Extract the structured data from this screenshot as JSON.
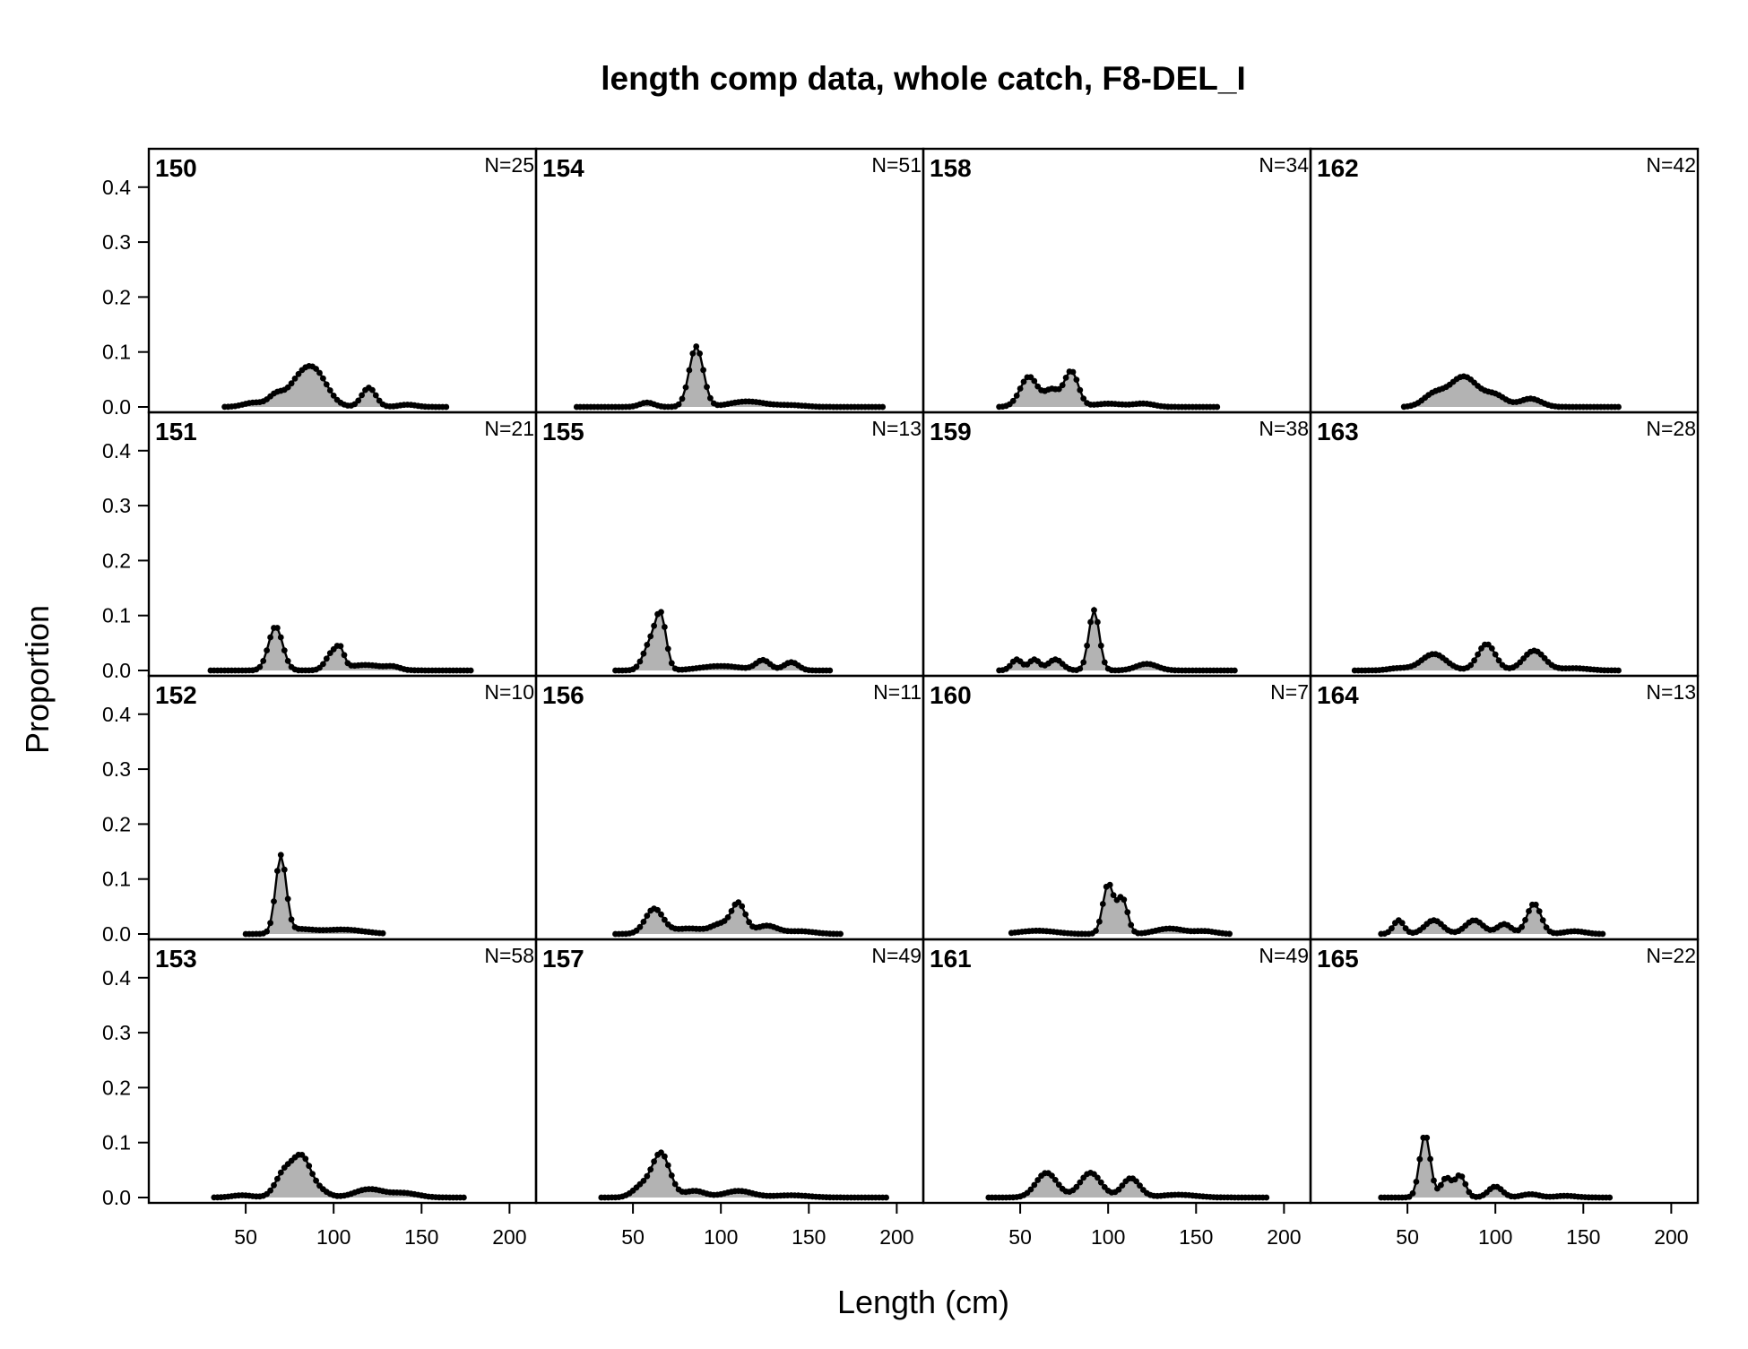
{
  "chart_data": {
    "type": "area",
    "title": "length comp data, whole catch, F8-DEL_I",
    "xlabel": "Length (cm)",
    "ylabel": "Proportion",
    "xlim": [
      0,
      210
    ],
    "ylim": [
      0,
      0.46
    ],
    "x_ticks": [
      50,
      100,
      150,
      200
    ],
    "y_ticks": [
      0.0,
      0.1,
      0.2,
      0.3,
      0.4
    ],
    "y_tick_labels": [
      "0.0",
      "0.1",
      "0.2",
      "0.3",
      "0.4"
    ],
    "grid": false,
    "layout": {
      "rows": 4,
      "cols": 4,
      "fill_order": "column"
    },
    "colors": {
      "fill": "#b3b3b3",
      "line": "#000000",
      "frame": "#000000"
    },
    "panels": [
      {
        "label": "150",
        "n": "N=25",
        "x_start": 38,
        "x_end": 164,
        "peaks": [
          [
            55,
            0.008,
            6
          ],
          [
            67,
            0.018,
            4
          ],
          [
            80,
            0.04,
            7
          ],
          [
            90,
            0.055,
            7
          ],
          [
            120,
            0.035,
            4
          ],
          [
            142,
            0.004,
            5
          ]
        ]
      },
      {
        "label": "151",
        "n": "N=21",
        "x_start": 30,
        "x_end": 178,
        "peaks": [
          [
            67,
            0.08,
            4
          ],
          [
            100,
            0.034,
            4
          ],
          [
            104,
            0.02,
            2
          ],
          [
            118,
            0.01,
            10
          ],
          [
            134,
            0.005,
            4
          ]
        ]
      },
      {
        "label": "152",
        "n": "N=10",
        "x_start": 50,
        "x_end": 128,
        "peaks": [
          [
            70,
            0.14,
            3
          ],
          [
            80,
            0.008,
            8
          ],
          [
            105,
            0.008,
            12
          ]
        ]
      },
      {
        "label": "153",
        "n": "N=58",
        "x_start": 32,
        "x_end": 175,
        "peaks": [
          [
            48,
            0.004,
            6
          ],
          [
            72,
            0.045,
            5
          ],
          [
            82,
            0.07,
            5
          ],
          [
            92,
            0.012,
            5
          ],
          [
            120,
            0.015,
            8
          ],
          [
            140,
            0.008,
            8
          ]
        ]
      },
      {
        "label": "154",
        "n": "N=51",
        "x_start": 18,
        "x_end": 192,
        "peaks": [
          [
            58,
            0.008,
            4
          ],
          [
            86,
            0.11,
            4
          ],
          [
            115,
            0.01,
            10
          ],
          [
            140,
            0.003,
            8
          ]
        ]
      },
      {
        "label": "155",
        "n": "N=13",
        "x_start": 40,
        "x_end": 162,
        "peaks": [
          [
            60,
            0.05,
            4
          ],
          [
            66,
            0.09,
            3
          ],
          [
            100,
            0.008,
            12
          ],
          [
            124,
            0.018,
            4
          ],
          [
            140,
            0.015,
            4
          ]
        ]
      },
      {
        "label": "156",
        "n": "N=11",
        "x_start": 40,
        "x_end": 168,
        "peaks": [
          [
            62,
            0.045,
            5
          ],
          [
            82,
            0.01,
            10
          ],
          [
            100,
            0.016,
            5
          ],
          [
            110,
            0.055,
            4
          ],
          [
            126,
            0.015,
            6
          ],
          [
            145,
            0.005,
            8
          ]
        ]
      },
      {
        "label": "157",
        "n": "N=49",
        "x_start": 32,
        "x_end": 195,
        "peaks": [
          [
            55,
            0.02,
            5
          ],
          [
            66,
            0.08,
            5
          ],
          [
            85,
            0.012,
            6
          ],
          [
            110,
            0.012,
            8
          ],
          [
            140,
            0.004,
            10
          ]
        ]
      },
      {
        "label": "158",
        "n": "N=34",
        "x_start": 38,
        "x_end": 162,
        "peaks": [
          [
            55,
            0.055,
            5
          ],
          [
            68,
            0.03,
            4
          ],
          [
            79,
            0.065,
            4
          ],
          [
            100,
            0.006,
            8
          ],
          [
            120,
            0.006,
            6
          ]
        ]
      },
      {
        "label": "159",
        "n": "N=38",
        "x_start": 38,
        "x_end": 172,
        "peaks": [
          [
            48,
            0.02,
            3
          ],
          [
            58,
            0.02,
            3
          ],
          [
            70,
            0.02,
            4
          ],
          [
            92,
            0.11,
            3
          ],
          [
            122,
            0.012,
            6
          ]
        ]
      },
      {
        "label": "160",
        "n": "N=7",
        "x_start": 45,
        "x_end": 170,
        "peaks": [
          [
            60,
            0.006,
            10
          ],
          [
            100,
            0.09,
            3
          ],
          [
            108,
            0.065,
            3
          ],
          [
            135,
            0.01,
            8
          ],
          [
            155,
            0.005,
            6
          ]
        ]
      },
      {
        "label": "161",
        "n": "N=49",
        "x_start": 32,
        "x_end": 190,
        "peaks": [
          [
            65,
            0.045,
            6
          ],
          [
            90,
            0.045,
            6
          ],
          [
            113,
            0.035,
            5
          ],
          [
            140,
            0.005,
            10
          ]
        ]
      },
      {
        "label": "162",
        "n": "N=42",
        "x_start": 48,
        "x_end": 170,
        "peaks": [
          [
            65,
            0.022,
            6
          ],
          [
            82,
            0.055,
            8
          ],
          [
            100,
            0.02,
            6
          ],
          [
            120,
            0.015,
            6
          ]
        ]
      },
      {
        "label": "163",
        "n": "N=28",
        "x_start": 20,
        "x_end": 170,
        "peaks": [
          [
            45,
            0.004,
            6
          ],
          [
            65,
            0.03,
            7
          ],
          [
            95,
            0.048,
            5
          ],
          [
            122,
            0.036,
            6
          ],
          [
            145,
            0.004,
            8
          ]
        ]
      },
      {
        "label": "164",
        "n": "N=13",
        "x_start": 35,
        "x_end": 162,
        "peaks": [
          [
            45,
            0.025,
            3
          ],
          [
            65,
            0.025,
            5
          ],
          [
            88,
            0.025,
            5
          ],
          [
            105,
            0.018,
            4
          ],
          [
            122,
            0.055,
            4
          ],
          [
            145,
            0.005,
            6
          ]
        ]
      },
      {
        "label": "165",
        "n": "N=22",
        "x_start": 35,
        "x_end": 165,
        "peaks": [
          [
            60,
            0.115,
            3
          ],
          [
            72,
            0.035,
            3
          ],
          [
            80,
            0.04,
            3
          ],
          [
            100,
            0.02,
            4
          ],
          [
            120,
            0.006,
            5
          ],
          [
            140,
            0.003,
            6
          ]
        ]
      }
    ]
  }
}
